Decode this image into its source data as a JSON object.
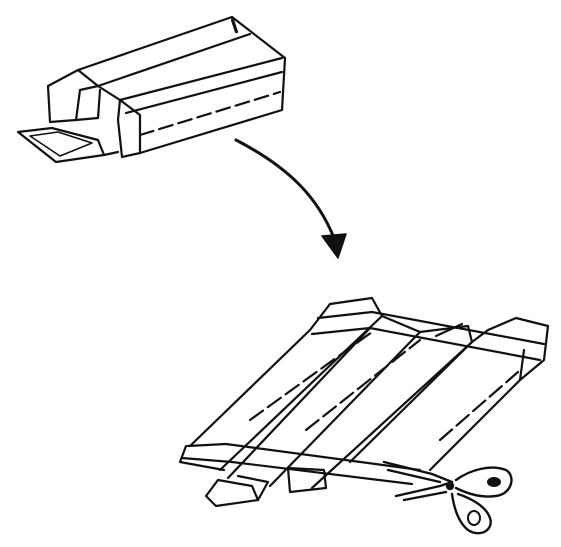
{
  "figure": {
    "ink_color": "#111111",
    "paper_color": "#ffffff",
    "panels": [
      {
        "name": "opened-box",
        "icon": "box-icon"
      },
      {
        "name": "arrow",
        "icon": "curved-arrow-icon"
      },
      {
        "name": "flattened-box-taped",
        "icon": "taped-panels-icon"
      },
      {
        "name": "scissors",
        "icon": "scissors-icon"
      }
    ]
  }
}
